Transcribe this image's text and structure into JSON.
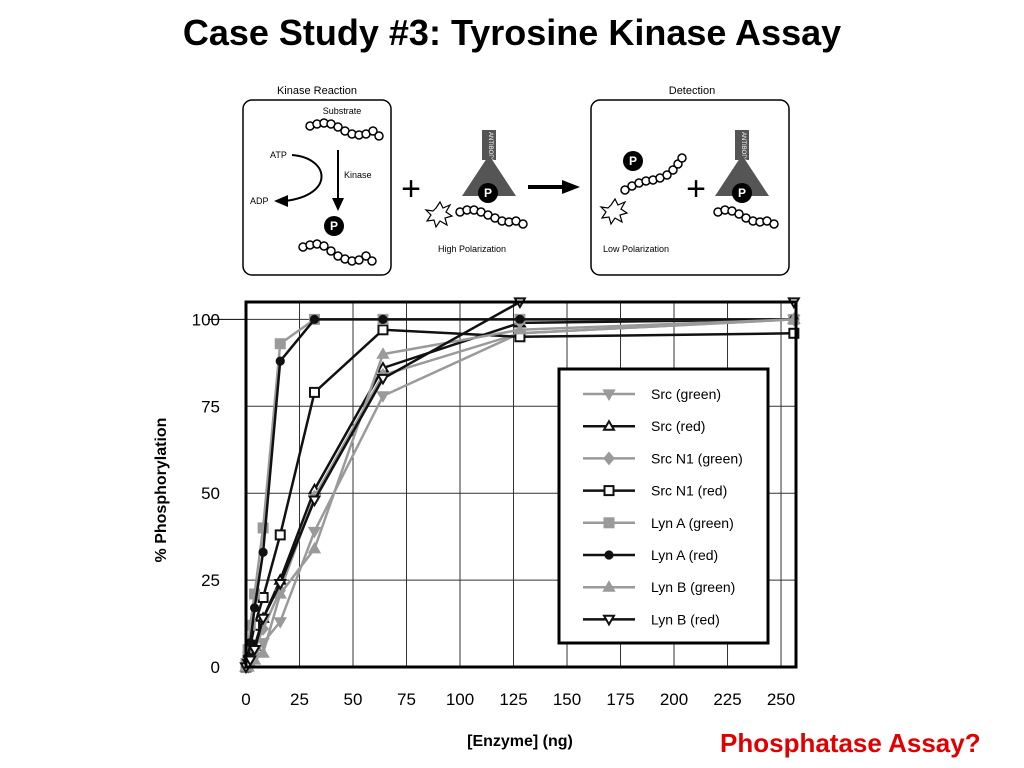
{
  "slide": {
    "title": "Case Study #3: Tyrosine Kinase Assay",
    "footer_note": "Phosphatase Assay?",
    "footer_color": "#e00000"
  },
  "diagram": {
    "panel_left_title": "Kinase Reaction",
    "substrate_label": "Substrate",
    "atp_label": "ATP",
    "adp_label": "ADP",
    "kinase_label": "Kinase",
    "phospho_symbol": "P",
    "antibody_label": "ANTIBODY",
    "high_pol_label": "High Polarization",
    "panel_right_title": "Detection",
    "low_pol_label": "Low Polarization",
    "plus_symbol": "+"
  },
  "chart_data": {
    "type": "line",
    "xlabel": "[Enzyme] (ng)",
    "ylabel": "% Phosphorylation",
    "xlim": [
      0,
      257
    ],
    "ylim": [
      0,
      105
    ],
    "xticks": [
      0,
      25,
      50,
      75,
      100,
      125,
      150,
      175,
      200,
      225,
      250
    ],
    "yticks": [
      0,
      25,
      50,
      75,
      100
    ],
    "grid": true,
    "legend_position": "right",
    "series": [
      {
        "name": "Src (green)",
        "color": "#9a9a9a",
        "marker": "tri-down",
        "filled": true,
        "x": [
          0,
          1,
          2,
          4,
          8,
          16,
          32,
          64,
          128,
          256
        ],
        "y": [
          0,
          0,
          1,
          3,
          7,
          13,
          39,
          78,
          96,
          100
        ]
      },
      {
        "name": "Src (red)",
        "color": "#111111",
        "marker": "tri-up",
        "filled": false,
        "x": [
          0,
          1,
          2,
          4,
          8,
          16,
          32,
          64,
          128,
          256
        ],
        "y": [
          0,
          1,
          3,
          6,
          14,
          25,
          51,
          86,
          99,
          100
        ]
      },
      {
        "name": "Src N1 (green)",
        "color": "#9a9a9a",
        "marker": "diamond",
        "filled": true,
        "x": [
          0,
          1,
          2,
          4,
          8,
          16,
          32,
          64,
          128,
          256
        ],
        "y": [
          0,
          1,
          2,
          5,
          11,
          22,
          49,
          84,
          96,
          100
        ]
      },
      {
        "name": "Src N1 (red)",
        "color": "#111111",
        "marker": "square",
        "filled": false,
        "x": [
          0,
          1,
          2,
          4,
          8,
          16,
          32,
          64,
          128,
          256
        ],
        "y": [
          0,
          3,
          6,
          12,
          20,
          38,
          79,
          97,
          95,
          96
        ]
      },
      {
        "name": "Lyn A (green)",
        "color": "#9a9a9a",
        "marker": "square",
        "filled": true,
        "x": [
          0,
          1,
          2,
          4,
          8,
          16,
          32,
          64,
          128,
          256
        ],
        "y": [
          1,
          5,
          12,
          21,
          40,
          93,
          100,
          100,
          100,
          100
        ]
      },
      {
        "name": "Lyn A (red)",
        "color": "#111111",
        "marker": "circle",
        "filled": true,
        "x": [
          0,
          1,
          2,
          4,
          8,
          16,
          32,
          64,
          128,
          256
        ],
        "y": [
          0,
          3,
          7,
          17,
          33,
          88,
          100,
          100,
          100,
          100
        ]
      },
      {
        "name": "Lyn B (green)",
        "color": "#9a9a9a",
        "marker": "tri-up",
        "filled": true,
        "x": [
          0,
          1,
          2,
          4,
          8,
          16,
          32,
          64,
          128,
          256
        ],
        "y": [
          0,
          0,
          1,
          2,
          4,
          21,
          34,
          90,
          97,
          100
        ]
      },
      {
        "name": "Lyn B (red)",
        "color": "#111111",
        "marker": "tri-down",
        "filled": false,
        "x": [
          0,
          1,
          2,
          4,
          8,
          16,
          32,
          64,
          128,
          256
        ],
        "y": [
          0,
          1,
          2,
          5,
          14,
          24,
          48,
          83,
          105,
          105
        ]
      }
    ]
  }
}
